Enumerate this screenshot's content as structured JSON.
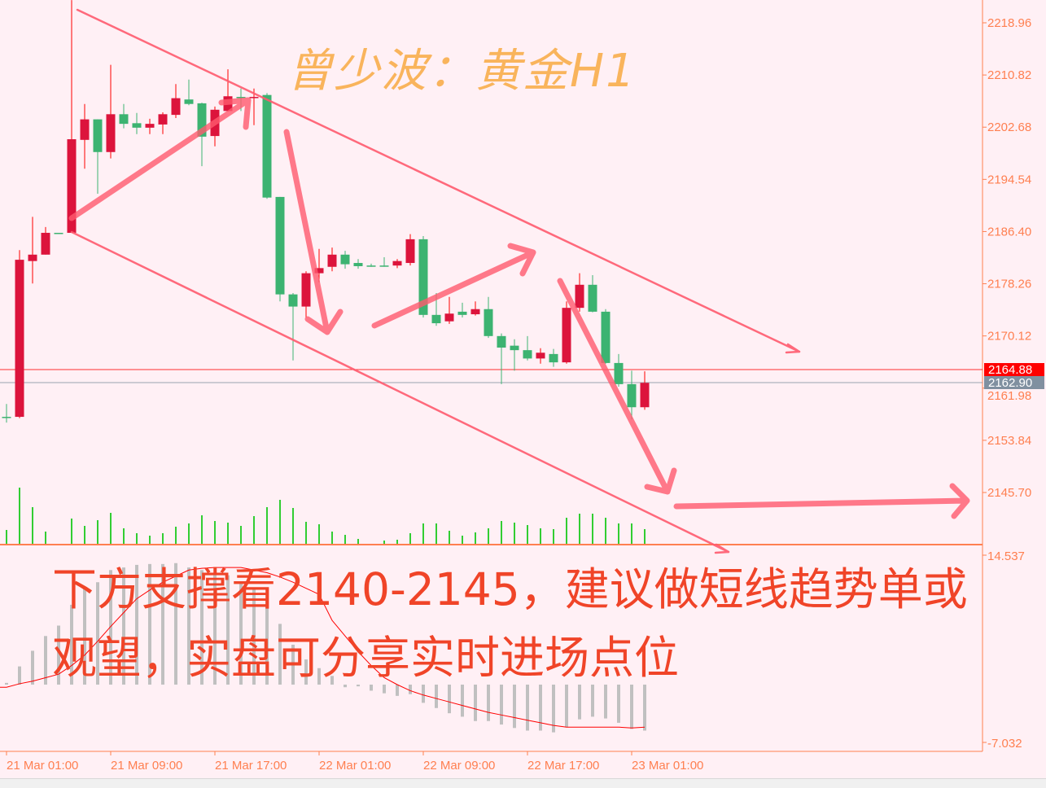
{
  "colors": {
    "background": "#fff0f5",
    "axis": "#ff7f50",
    "up_candle": "#dc143c",
    "down_candle": "#3cb371",
    "volume": "#32cd32",
    "macd_histogram": "#c0c0c0",
    "macd_signal": "#ff0000",
    "annotation": "#ff5a6e",
    "title": "#f9b45c",
    "note_text": "#f04428",
    "bid_line": "#ff0000",
    "ask_line": "#8090a0"
  },
  "annotations": {
    "title": "曾少波：黄金H1",
    "note_line1": "下方支撑看2140-2145，建议做短线趋势单或",
    "note_line2": "观望，实盘可分享实时进场点位"
  },
  "chart_data": [
    {
      "type": "candlestick",
      "timeframe": "H1",
      "y_ticks": [
        "2218.96",
        "2210.82",
        "2202.68",
        "2194.54",
        "2186.40",
        "2178.26",
        "2170.12",
        "2161.98",
        "2153.84",
        "2145.70"
      ],
      "x_ticks": [
        "21 Mar 01:00",
        "21 Mar 09:00",
        "21 Mar 17:00",
        "22 Mar 01:00",
        "22 Mar 09:00",
        "22 Mar 17:00",
        "23 Mar 01:00"
      ],
      "price_tags": [
        {
          "value": "2164.88",
          "color": "#ff0000"
        },
        {
          "value": "2162.90",
          "color": "#8090a0"
        }
      ],
      "ohlc_fields": [
        "open",
        "high",
        "low",
        "close"
      ],
      "ohlc": [
        [
          2157.5,
          2159.5,
          2156.6,
          2157.4
        ],
        [
          2157.5,
          2183.5,
          2157.3,
          2182.0
        ],
        [
          2181.8,
          2188.7,
          2178.3,
          2182.8
        ],
        [
          2182.8,
          2187.1,
          2182.8,
          2186.2
        ],
        [
          2186.2,
          2186.2,
          2186.2,
          2186.2
        ],
        [
          2186.2,
          2222.5,
          2186.2,
          2200.8
        ],
        [
          2200.7,
          2206.3,
          2196.2,
          2203.9
        ],
        [
          2203.9,
          2203.9,
          2192.3,
          2198.8
        ],
        [
          2198.8,
          2212.4,
          2197.8,
          2204.7
        ],
        [
          2204.7,
          2206.3,
          2202.5,
          2203.2
        ],
        [
          2203.3,
          2204.9,
          2201.6,
          2202.6
        ],
        [
          2202.6,
          2204.0,
          2201.6,
          2203.2
        ],
        [
          2203.1,
          2205.0,
          2201.6,
          2204.7
        ],
        [
          2204.6,
          2209.4,
          2204.1,
          2207.2
        ],
        [
          2207.0,
          2210.1,
          2206.1,
          2206.3
        ],
        [
          2206.4,
          2206.5,
          2196.6,
          2201.2
        ],
        [
          2201.3,
          2205.9,
          2199.7,
          2205.4
        ],
        [
          2205.2,
          2211.7,
          2205.1,
          2207.5
        ],
        [
          2207.4,
          2208.7,
          2205.2,
          2207.3
        ],
        [
          2207.3,
          2208.7,
          2203.0,
          2207.4
        ],
        [
          2207.7,
          2208.0,
          2191.5,
          2191.7
        ],
        [
          2191.8,
          2191.8,
          2175.5,
          2176.6
        ],
        [
          2176.6,
          2176.8,
          2166.3,
          2174.7
        ],
        [
          2174.7,
          2180.2,
          2173.0,
          2179.9
        ],
        [
          2179.9,
          2183.7,
          2178.5,
          2180.7
        ],
        [
          2180.9,
          2183.9,
          2180.2,
          2182.8
        ],
        [
          2182.8,
          2183.4,
          2180.6,
          2181.3
        ],
        [
          2181.5,
          2182.1,
          2180.6,
          2181.0
        ],
        [
          2181.1,
          2181.4,
          2180.9,
          2181.1
        ],
        [
          2181.1,
          2182.4,
          2180.9,
          2181.1
        ],
        [
          2181.1,
          2182.1,
          2180.7,
          2181.8
        ],
        [
          2181.5,
          2186.0,
          2181.1,
          2185.2
        ],
        [
          2185.2,
          2185.7,
          2173.0,
          2173.4
        ],
        [
          2173.4,
          2176.8,
          2171.7,
          2172.1
        ],
        [
          2172.4,
          2176.2,
          2172.0,
          2173.6
        ],
        [
          2173.9,
          2175.3,
          2173.0,
          2173.4
        ],
        [
          2173.5,
          2175.5,
          2173.3,
          2174.3
        ],
        [
          2174.3,
          2176.2,
          2169.8,
          2170.1
        ],
        [
          2170.1,
          2170.5,
          2162.6,
          2168.3
        ],
        [
          2168.6,
          2169.6,
          2164.7,
          2167.9
        ],
        [
          2167.9,
          2170.1,
          2166.3,
          2166.6
        ],
        [
          2166.6,
          2168.2,
          2165.8,
          2167.5
        ],
        [
          2167.3,
          2168.1,
          2165.3,
          2166.0
        ],
        [
          2166.0,
          2175.5,
          2165.8,
          2174.5
        ],
        [
          2174.5,
          2179.9,
          2173.9,
          2178.1
        ],
        [
          2178.1,
          2179.6,
          2173.8,
          2173.9
        ],
        [
          2173.9,
          2174.3,
          2165.8,
          2165.9
        ],
        [
          2165.9,
          2167.3,
          2162.2,
          2162.6
        ],
        [
          2162.6,
          2164.7,
          2157.1,
          2159.0
        ],
        [
          2159.0,
          2164.6,
          2158.6,
          2162.8
        ]
      ],
      "volume_relative": [
        17,
        69,
        45,
        15,
        0,
        31,
        22,
        29,
        38,
        19,
        13,
        10,
        13,
        21,
        25,
        35,
        28,
        26,
        22,
        34,
        45,
        54,
        44,
        27,
        24,
        15,
        11,
        6,
        0,
        4,
        5,
        13,
        25,
        25,
        16,
        10,
        14,
        19,
        28,
        26,
        23,
        19,
        18,
        32,
        37,
        37,
        32,
        25,
        25,
        18
      ]
    },
    {
      "type": "bar",
      "indicator": "MACD",
      "y_ticks": [
        "14.537",
        "-7.032"
      ],
      "ylim": [
        -7.032,
        14.537
      ],
      "histogram": [
        0.2,
        2.1,
        3.9,
        5.6,
        6.8,
        9.2,
        11.1,
        11.8,
        13.2,
        13.5,
        13.8,
        13.9,
        13.9,
        14.0,
        13.5,
        13.2,
        12.9,
        12.6,
        11.6,
        11.1,
        9.9,
        7.0,
        4.6,
        2.9,
        1.9,
        1.0,
        -0.3,
        -0.2,
        -0.7,
        -1.0,
        -1.3,
        -1.1,
        -2.1,
        -2.7,
        -3.3,
        -3.7,
        -4.2,
        -4.2,
        -4.6,
        -5.0,
        -5.3,
        -5.3,
        -5.5,
        -4.9,
        -4.0,
        -3.7,
        -3.9,
        -4.4,
        -5.1,
        -5.3
      ],
      "signal": [
        -0.3,
        0.1,
        0.4,
        0.8,
        1.2,
        2.2,
        3.4,
        5.0,
        6.7,
        8.3,
        9.9,
        10.9,
        11.8,
        12.5,
        13.2,
        13.4,
        13.5,
        13.5,
        13.5,
        13.2,
        12.9,
        12.4,
        11.8,
        11.1,
        10.4,
        7.4,
        5.6,
        3.8,
        2.2,
        0.8,
        0.0,
        -0.7,
        -1.2,
        -1.6,
        -2.0,
        -2.4,
        -2.8,
        -3.2,
        -3.5,
        -3.8,
        -4.1,
        -4.4,
        -4.7,
        -4.9,
        -4.9,
        -4.9,
        -4.9,
        -4.9,
        -5.0,
        -4.9
      ]
    }
  ]
}
